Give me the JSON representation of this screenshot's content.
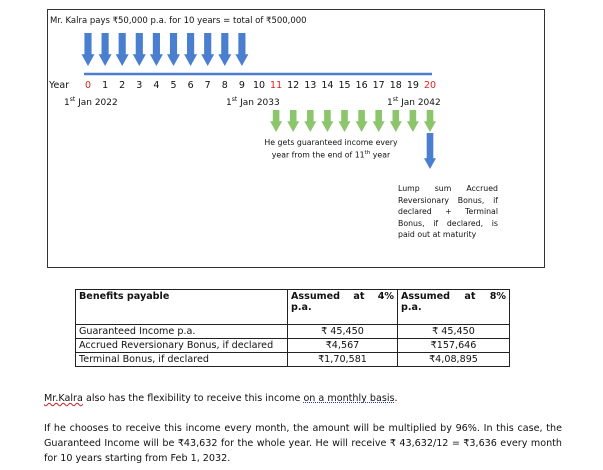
{
  "diagram": {
    "premium_note": "Mr. Kalra pays ₹50,000 p.a. for 10 years = total of ₹500,000",
    "year_label": "Year",
    "ticks": [
      "0",
      "1",
      "2",
      "3",
      "4",
      "5",
      "6",
      "7",
      "8",
      "9",
      "10",
      "11",
      "12",
      "13",
      "14",
      "15",
      "16",
      "17",
      "18",
      "19",
      "20"
    ],
    "red_ticks": [
      "0",
      "11",
      "20"
    ],
    "dates": [
      {
        "num": "1",
        "sup": "st",
        "rest": " Jan 2022"
      },
      {
        "num": "1",
        "sup": "st",
        "rest": " Jan 2033"
      },
      {
        "num": "1",
        "sup": "st",
        "rest": " Jan 2042"
      }
    ],
    "income_note_1": "He gets guaranteed income every",
    "income_note_2a": "year from the end of 11",
    "income_note_2sup": "th",
    "income_note_2b": " year",
    "lumpsum_note": "Lump sum Accrued Reversionary Bonus, if declared + Terminal Bonus, if declared, is paid out at maturity",
    "colors": {
      "premium_arrow": "#4a7fd0",
      "income_arrow": "#8cc56b",
      "timeline": "#4a7fd0",
      "tick_red": "#e02020"
    }
  },
  "table": {
    "headers": [
      "Benefits payable",
      "Assumed at 4% p.a.",
      "Assumed at 8% p.a."
    ],
    "rows": [
      [
        "Guaranteed Income p.a.",
        "₹ 45,450",
        "₹ 45,450"
      ],
      [
        "Accrued Reversionary Bonus, if declared",
        "₹4,567",
        "₹157,646"
      ],
      [
        "Terminal Bonus, if declared",
        "₹1,70,581",
        "₹4,08,895"
      ]
    ]
  },
  "flex": {
    "name": "Mr.Kalra",
    "middle": " also has the flexibility to receive this income ",
    "dotted": "on a monthly basis",
    "end": "."
  },
  "paragraph": "If he chooses to receive this income every month, the amount will be multiplied by 96%. In this case, the Guaranteed Income will be ₹43,632 for the whole year. He will receive ₹ 43,632/12 = ₹3,636 every month for 10 years starting from Feb 1, 2032."
}
